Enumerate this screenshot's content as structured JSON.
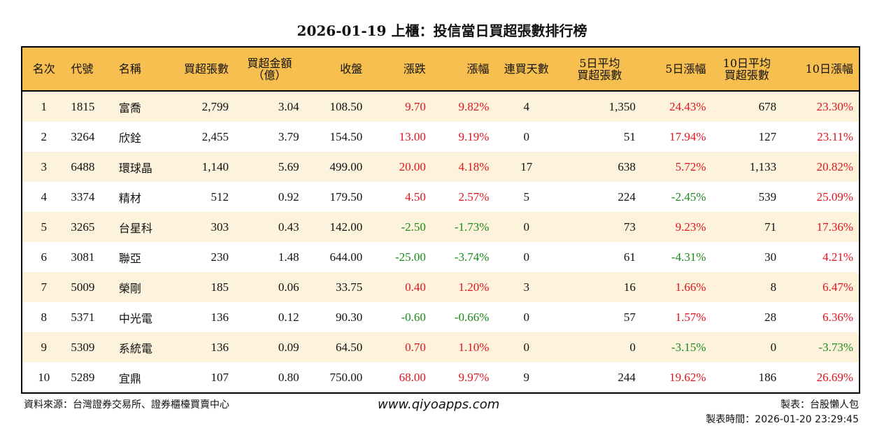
{
  "title": "2026-01-19 上櫃：投信當日買超張數排行榜",
  "headers": [
    "名次",
    "代號",
    "名稱",
    "買超張數",
    "買超金額\n（億）",
    "收盤",
    "漲跌",
    "漲幅",
    "連買天數",
    "5日平均\n買超張數",
    "5日漲幅",
    "10日平均\n買超張數",
    "10日漲幅"
  ],
  "rows": [
    [
      "1",
      "1815",
      "富喬",
      "2,799",
      "3.04",
      "108.50",
      "9.70",
      "9.82%",
      "4",
      "1,350",
      "24.43%",
      "678",
      "23.30%"
    ],
    [
      "2",
      "3264",
      "欣銓",
      "2,455",
      "3.79",
      "154.50",
      "13.00",
      "9.19%",
      "0",
      "51",
      "17.94%",
      "127",
      "23.11%"
    ],
    [
      "3",
      "6488",
      "環球晶",
      "1,140",
      "5.69",
      "499.00",
      "20.00",
      "4.18%",
      "17",
      "638",
      "5.72%",
      "1,133",
      "20.82%"
    ],
    [
      "4",
      "3374",
      "精材",
      "512",
      "0.92",
      "179.50",
      "4.50",
      "2.57%",
      "5",
      "224",
      "-2.45%",
      "539",
      "25.09%"
    ],
    [
      "5",
      "3265",
      "台星科",
      "303",
      "0.43",
      "142.00",
      "-2.50",
      "-1.73%",
      "0",
      "73",
      "9.23%",
      "71",
      "17.36%"
    ],
    [
      "6",
      "3081",
      "聯亞",
      "230",
      "1.48",
      "644.00",
      "-25.00",
      "-3.74%",
      "0",
      "61",
      "-4.31%",
      "30",
      "4.21%"
    ],
    [
      "7",
      "5009",
      "榮剛",
      "185",
      "0.06",
      "33.75",
      "0.40",
      "1.20%",
      "3",
      "16",
      "1.66%",
      "8",
      "6.47%"
    ],
    [
      "8",
      "5371",
      "中光電",
      "136",
      "0.12",
      "90.30",
      "-0.60",
      "-0.66%",
      "0",
      "57",
      "1.57%",
      "28",
      "6.36%"
    ],
    [
      "9",
      "5309",
      "系統電",
      "136",
      "0.09",
      "64.50",
      "0.70",
      "1.10%",
      "0",
      "0",
      "-3.15%",
      "0",
      "-3.73%"
    ],
    [
      "10",
      "5289",
      "宜鼎",
      "107",
      "0.80",
      "750.00",
      "68.00",
      "9.97%",
      "9",
      "244",
      "19.62%",
      "186",
      "26.69%"
    ]
  ],
  "footer": {
    "source": "資料來源：台灣證券交易所、證券櫃檯買賣中心",
    "site": "www.qiyoapps.com",
    "maker": "製表：台股懶人包",
    "time": "製表時間：2026-01-20 23:29:45"
  },
  "colors": {
    "header": "#f6bf4f",
    "stripe": "#fdf3dc",
    "up": "#e0141e",
    "down": "#1a8a1a"
  }
}
